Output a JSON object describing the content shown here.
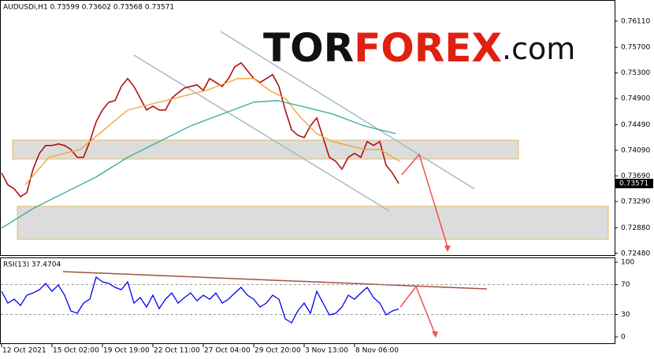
{
  "chart_data": [
    {
      "type": "line",
      "title": "AUDUSDi,H1  0.73599 0.73602 0.73568 0.73571",
      "watermark": [
        "TOR",
        "FOREX",
        ".com"
      ],
      "last_price_label": "0.73571",
      "xlim": [
        0,
        97.5
      ],
      "ylim": [
        0.7244,
        0.7644
      ],
      "yticks": [
        {
          "value": 0.7611,
          "label": "0.76110"
        },
        {
          "value": 0.757,
          "label": "0.75700"
        },
        {
          "value": 0.753,
          "label": "0.75300"
        },
        {
          "value": 0.749,
          "label": "0.74900"
        },
        {
          "value": 0.7449,
          "label": "0.74490"
        },
        {
          "value": 0.7409,
          "label": "0.74090"
        },
        {
          "value": 0.7369,
          "label": "0.73690"
        },
        {
          "value": 0.7329,
          "label": "0.73290"
        },
        {
          "value": 0.7288,
          "label": "0.72880"
        },
        {
          "value": 0.7248,
          "label": "0.72480"
        }
      ],
      "grid": false,
      "series": [
        {
          "color": "#b01010",
          "values": [
            0.73735,
            0.7355,
            0.73489,
            0.73366,
            0.73427,
            0.73796,
            0.74043,
            0.74166,
            0.74166,
            0.7419,
            0.74166,
            0.74104,
            0.73981,
            0.73981,
            0.74227,
            0.74535,
            0.74719,
            0.74842,
            0.74867,
            0.75089,
            0.75212,
            0.75089,
            0.74904,
            0.74719,
            0.74781,
            0.74719,
            0.74719,
            0.74904,
            0.7499,
            0.75064,
            0.75089,
            0.75113,
            0.75027,
            0.75212,
            0.7515,
            0.75089,
            0.75212,
            0.75396,
            0.75458,
            0.75335,
            0.75212,
            0.7515,
            0.75212,
            0.75273,
            0.75089,
            0.74719,
            0.74412,
            0.74326,
            0.74289,
            0.74473,
            0.74596,
            0.74289,
            0.73981,
            0.7392,
            0.73796,
            0.73981,
            0.74043,
            0.73981,
            0.74227,
            0.74166,
            0.74227,
            0.73858,
            0.73735,
            0.73571
          ]
        },
        {
          "color": "#f0a030",
          "x": [
            3.75,
            7.5,
            12.5,
            16.25,
            20,
            25,
            30,
            32.5,
            37.5,
            40,
            42.5,
            45,
            47.5,
            50,
            52.5,
            55,
            57.5,
            60,
            63.125
          ],
          "values": [
            0.7355,
            0.73981,
            0.74104,
            0.74412,
            0.74719,
            0.74842,
            0.74966,
            0.75027,
            0.75212,
            0.75212,
            0.75027,
            0.74904,
            0.74596,
            0.7435,
            0.74227,
            0.74166,
            0.74104,
            0.74104,
            0.7392
          ]
        },
        {
          "color": "#30a8a0",
          "x": [
            0,
            5,
            10,
            15,
            20,
            25,
            30,
            35,
            40,
            43.75,
            47.5,
            52.5,
            57.5,
            62.5
          ],
          "values": [
            0.72874,
            0.73181,
            0.73427,
            0.73673,
            0.73981,
            0.74227,
            0.74473,
            0.74658,
            0.74842,
            0.74867,
            0.74781,
            0.74658,
            0.74473,
            0.7435
          ]
        }
      ]
    },
    {
      "type": "line",
      "title": "RSI(13) 37.4704",
      "xlim": [
        0,
        97.5
      ],
      "xticks": [
        {
          "value": 0,
          "label": "12 Oct 2021"
        },
        {
          "value": 8,
          "label": "15 Oct 02:00"
        },
        {
          "value": 16,
          "label": "19 Oct 19:00"
        },
        {
          "value": 24,
          "label": "22 Oct 11:00"
        },
        {
          "value": 32,
          "label": "27 Oct 04:00"
        },
        {
          "value": 40,
          "label": "29 Oct 20:00"
        },
        {
          "value": 48,
          "label": "3 Nov 13:00"
        },
        {
          "value": 56,
          "label": "8 Nov 06:00"
        }
      ],
      "ylim": [
        -9.5,
        105.3
      ],
      "yticks": [
        100,
        70,
        30,
        0
      ],
      "levels": [
        70,
        30
      ],
      "series": [
        {
          "color": "#0000ee",
          "values": [
            61.1,
            45.3,
            50.5,
            42.1,
            55.8,
            58.9,
            63.2,
            71.6,
            61.1,
            69.5,
            55.8,
            34.7,
            31.6,
            45.3,
            50.5,
            80.0,
            73.7,
            71.6,
            66.3,
            63.2,
            73.7,
            45.3,
            52.6,
            40.0,
            55.8,
            37.9,
            50.5,
            58.9,
            45.3,
            52.6,
            58.9,
            48.4,
            55.8,
            50.5,
            58.9,
            45.3,
            50.5,
            58.9,
            66.3,
            55.8,
            50.5,
            40.0,
            45.3,
            55.8,
            50.5,
            24.2,
            18.9,
            34.7,
            45.3,
            31.6,
            61.1,
            45.3,
            29.5,
            31.6,
            40.0,
            55.8,
            50.5,
            58.9,
            66.3,
            52.6,
            45.3,
            29.5,
            34.7,
            37.4704
          ]
        }
      ]
    }
  ]
}
